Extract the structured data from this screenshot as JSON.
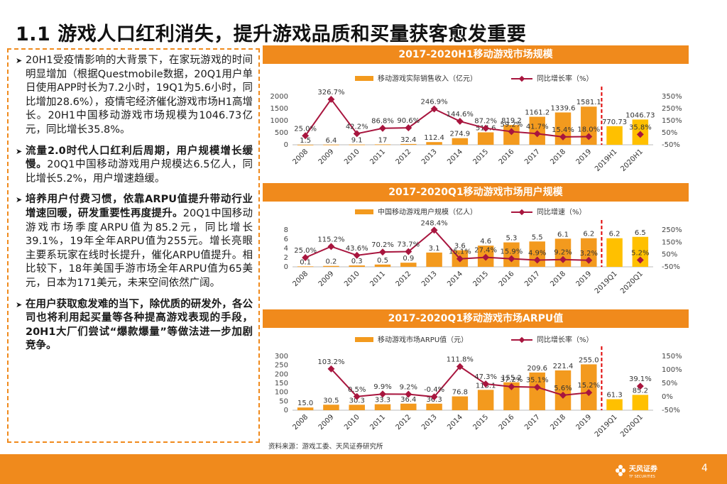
{
  "page": {
    "title": "1.1 游戏人口红利消失，提升游戏品质和买量获客愈发重要",
    "page_number": "4",
    "source": "资料来源：游戏工委、天风证券研究所",
    "logo_text": "天风证券",
    "logo_subtext": "TF SECURITIES"
  },
  "bullets": [
    {
      "bold": "",
      "text": "20H1受疫情影响的大背景下，在家玩游戏的时间明显增加（根据Questmobile数据，20Q1用户单日使用APP时长为7.2小时，19Q1为5.6小时，同比增加28.6%），疫情宅经济催化游戏市场H1高增长。20H1中国移动游戏市场规模为1046.73亿元，同比增长35.8%。"
    },
    {
      "bold": "流量2.0时代人口红利后周期，用户规模增长缓慢。",
      "text": "20Q1中国移动游戏用户规模达6.5亿人，同比增长5.2%，用户增速趋缓。"
    },
    {
      "bold": "培养用户付费习惯，依靠ARPU值提升带动行业增速回暖，研发重要性再度提升。",
      "text": "20Q1中国移动游戏市场季度ARPU值为85.2元，同比增长39.1%，19年全年ARPU值为255元。增长亮眼主要系玩家在线时长提升，催化ARPU值提升。相比较下，18年美国手游市场全年ARPU值为65美元，日本为171美元，未来空间依然广阔。"
    },
    {
      "bold": "在用户获取愈发难的当下，除优质的研发外，各公司也将利用起买量等各种提高游戏表现的手段，20H1大厂们尝试“爆款爆量”等做法进一步加剧竞争。",
      "text": ""
    }
  ],
  "chart_data": [
    {
      "type": "bar",
      "title": "2017-2020H1移动游戏市场规模",
      "categories": [
        "2008",
        "2009",
        "2010",
        "2011",
        "2012",
        "2013",
        "2014",
        "2015",
        "2016",
        "2017",
        "2018",
        "2019",
        "2019H1",
        "2020H1"
      ],
      "bar_labels": [
        "1.5",
        "6.4",
        "9.1",
        "17",
        "32.4",
        "112.4",
        "274.9",
        "514.6",
        "819.2",
        "1161.2",
        "1339.6",
        "1581.1",
        "770.73",
        "1046.73"
      ],
      "line_labels": [
        "25.0%",
        "326.7%",
        "42.2%",
        "86.8%",
        "90.6%",
        "246.9%",
        "144.6%",
        "87.2%",
        "59.2%",
        "41.7%",
        "15.4%",
        "18.0%",
        "",
        "35.8%"
      ],
      "series": [
        {
          "name": "移动游戏实际销售收入（亿元）",
          "kind": "bar",
          "values": [
            1.5,
            6.4,
            9.1,
            17,
            32.4,
            112.4,
            274.9,
            514.6,
            819.2,
            1161.2,
            1339.6,
            1581.1,
            770.73,
            1046.73
          ]
        },
        {
          "name": "同比增长率（%）",
          "kind": "line",
          "values": [
            25.0,
            326.7,
            42.2,
            86.8,
            90.6,
            246.9,
            144.6,
            87.2,
            59.2,
            41.7,
            15.4,
            18.0,
            null,
            35.8
          ]
        }
      ],
      "left_ticks": [
        "2000",
        "1500",
        "1000",
        "500",
        "0"
      ],
      "left_ylim": [
        0,
        2000
      ],
      "right_ticks": [
        "350%",
        "250%",
        "150%",
        "50%",
        "-50%"
      ],
      "right_ylim": [
        -50,
        350
      ]
    },
    {
      "type": "bar",
      "title": "2017-2020Q1移动游戏市场用户规模",
      "categories": [
        "2008",
        "2009",
        "2010",
        "2011",
        "2012",
        "2013",
        "2014",
        "2015",
        "2016",
        "2017",
        "2018",
        "2019",
        "2019Q1",
        "2020Q1"
      ],
      "bar_labels": [
        "0.1",
        "0.2",
        "0.3",
        "0.5",
        "0.9",
        "3.1",
        "3.6",
        "4.6",
        "5.3",
        "5.5",
        "6.1",
        "6.2",
        "6.2",
        "6.5"
      ],
      "line_labels": [
        "25.0%",
        "115.2%",
        "43.6%",
        "70.2%",
        "73.7%",
        "248.4%",
        "15.1%",
        "27.4%",
        "15.9%",
        "4.9%",
        "9.2%",
        "3.2%",
        "",
        "5.2%"
      ],
      "series": [
        {
          "name": "中国移动游戏用户规模（亿人）",
          "kind": "bar",
          "values": [
            0.1,
            0.2,
            0.3,
            0.5,
            0.9,
            3.1,
            3.6,
            4.6,
            5.3,
            5.5,
            6.1,
            6.2,
            6.2,
            6.5
          ]
        },
        {
          "name": "同比增速（%）",
          "kind": "line",
          "values": [
            25.0,
            115.2,
            43.6,
            70.2,
            73.7,
            248.4,
            15.1,
            27.4,
            15.9,
            4.9,
            9.2,
            3.2,
            null,
            5.2
          ]
        }
      ],
      "left_ticks": [
        "8",
        "6",
        "4",
        "2",
        "0"
      ],
      "left_ylim": [
        0,
        8
      ],
      "right_ticks": [
        "250%",
        "150%",
        "50%",
        "-50%"
      ],
      "right_ylim": [
        -50,
        250
      ]
    },
    {
      "type": "bar",
      "title": "2017-2020Q1移动游戏市场ARPU值",
      "categories": [
        "2008",
        "2009",
        "2010",
        "2011",
        "2012",
        "2013",
        "2014",
        "2015",
        "2016",
        "2017",
        "2018",
        "2019",
        "2019Q1",
        "2020Q1"
      ],
      "bar_labels": [
        "15.0",
        "30.5",
        "30.3",
        "33.3",
        "36.4",
        "36.3",
        "76.8",
        "113.1",
        "155.2",
        "209.6",
        "221.4",
        "255.0",
        "61.3",
        "85.2"
      ],
      "line_labels": [
        "",
        "103.2%",
        "0.5%",
        "9.9%",
        "9.2%",
        "-0.4%",
        "111.8%",
        "47.3%",
        "37.2%",
        "35.1%",
        "5.6%",
        "15.2%",
        "",
        "39.1%"
      ],
      "series": [
        {
          "name": "移动游戏市场ARPU值（元）",
          "kind": "bar",
          "values": [
            15.0,
            30.5,
            30.3,
            33.3,
            36.4,
            36.3,
            76.8,
            113.1,
            155.2,
            209.6,
            221.4,
            255.0,
            61.3,
            85.2
          ]
        },
        {
          "name": "同比增长率（%）",
          "kind": "line",
          "values": [
            null,
            103.2,
            0.5,
            9.9,
            9.2,
            -0.4,
            111.8,
            47.3,
            37.2,
            35.1,
            5.6,
            15.2,
            null,
            39.1
          ]
        }
      ],
      "left_ticks": [
        "300",
        "250",
        "200",
        "150",
        "100",
        "50",
        "0"
      ],
      "left_ylim": [
        0,
        300
      ],
      "right_ticks": [
        "150%",
        "100%",
        "50%",
        "0%",
        "-50%"
      ],
      "right_ylim": [
        -50,
        150
      ]
    }
  ],
  "colors": {
    "accent": "#f08a1c",
    "bar": "#f39a1e",
    "bar_highlight": "#ffc000",
    "line": "#a8153e",
    "divider": "#e00000"
  }
}
